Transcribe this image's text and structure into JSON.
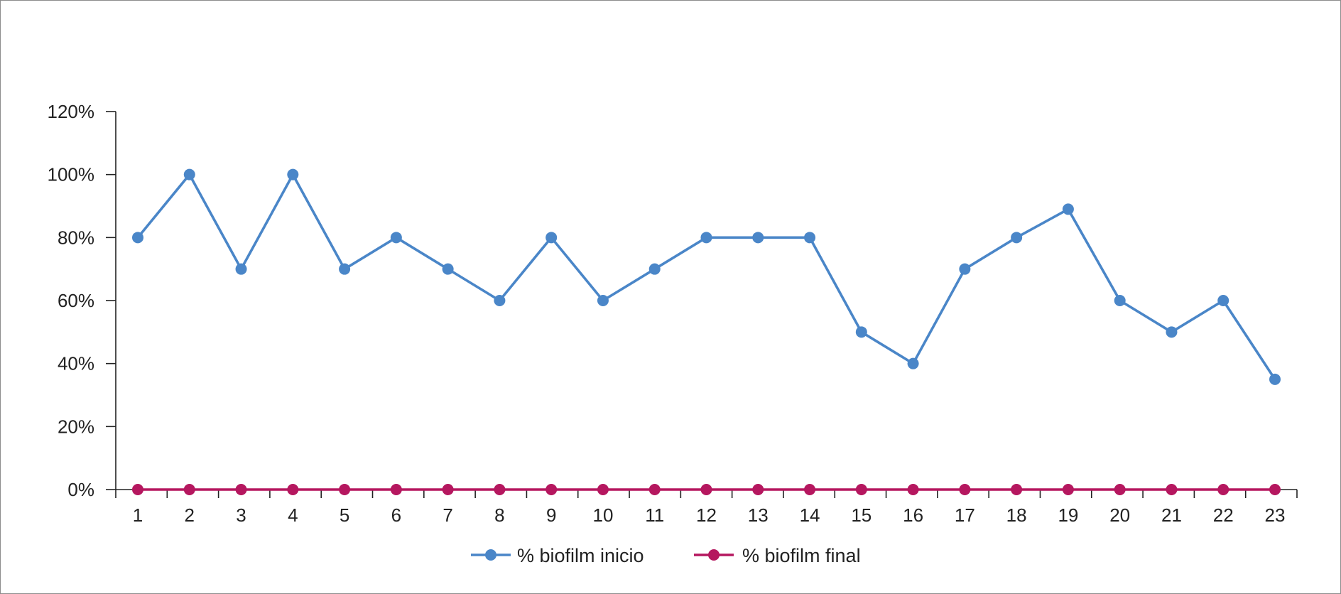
{
  "chart_data": {
    "type": "line",
    "title": "",
    "xlabel": "",
    "ylabel": "",
    "categories": [
      "1",
      "2",
      "3",
      "4",
      "5",
      "6",
      "7",
      "8",
      "9",
      "10",
      "11",
      "12",
      "13",
      "14",
      "15",
      "16",
      "17",
      "18",
      "19",
      "20",
      "21",
      "22",
      "23"
    ],
    "y_ticks": [
      "0%",
      "20%",
      "40%",
      "60%",
      "80%",
      "100%",
      "120%"
    ],
    "ylim": [
      0,
      1.2
    ],
    "grid": false,
    "legend_position": "bottom",
    "series": [
      {
        "name": "% biofilm inicio",
        "color": "#4A86C8",
        "values": [
          0.8,
          1.0,
          0.7,
          1.0,
          0.7,
          0.8,
          0.7,
          0.6,
          0.8,
          0.6,
          0.7,
          0.8,
          0.8,
          0.8,
          0.5,
          0.4,
          0.7,
          0.8,
          0.89,
          0.6,
          0.5,
          0.6,
          0.35
        ]
      },
      {
        "name": "% biofilm final",
        "color": "#B5175F",
        "values": [
          0,
          0,
          0,
          0,
          0,
          0,
          0,
          0,
          0,
          0,
          0,
          0,
          0,
          0,
          0,
          0,
          0,
          0,
          0,
          0,
          0,
          0,
          0
        ]
      }
    ]
  }
}
